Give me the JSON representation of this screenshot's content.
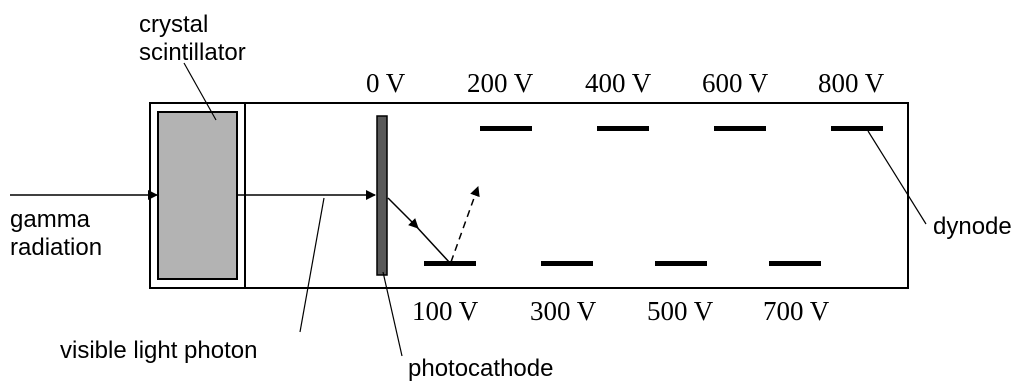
{
  "labels": {
    "crystal_line1": "crystal",
    "crystal_line2": "scintillator",
    "gamma_line1": "gamma",
    "gamma_line2": "radiation",
    "visible_photon": "visible light photon",
    "photocathode": "photocathode",
    "dynode": "dynode"
  },
  "voltages": {
    "top": [
      "0 V",
      "200 V",
      "400 V",
      "600 V",
      "800 V"
    ],
    "bottom": [
      "100 V",
      "300 V",
      "500 V",
      "700 V"
    ]
  },
  "colors": {
    "scintillator_fill": "#b3b3b3",
    "photocathode_fill": "#595959",
    "line": "#000000"
  }
}
